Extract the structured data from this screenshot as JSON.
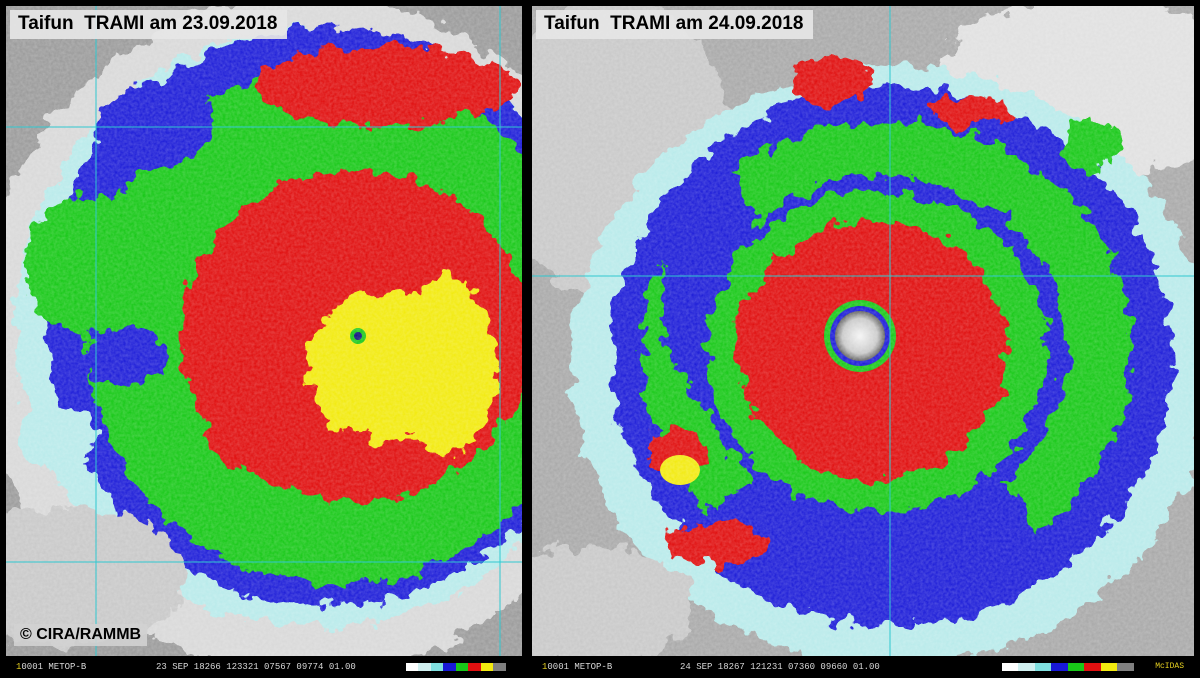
{
  "left_panel": {
    "title": "Taifun  TRAMI am 23.09.2018",
    "credit": "© CIRA/RAMMB",
    "status_frame_num": "1",
    "status_frame_rest": "0001 METOP-B",
    "status_info": "23 SEP 18266 123321 07567 09774 01.00"
  },
  "right_panel": {
    "title": "Taifun  TRAMI am 24.09.2018",
    "status_frame_num": "1",
    "status_frame_rest": "0001 METOP-B",
    "status_info": "24 SEP 18267 121231 07360 09660 01.00",
    "brand": "McIDAS"
  },
  "colors": {
    "red": "#e01010",
    "yellow": "#f2ea10",
    "green": "#18c818",
    "blue": "#1818d8",
    "cyan": "#a0e8e8",
    "gray_cloud": "#b8b8b8",
    "grid": "#30c8d0"
  },
  "colorbar": [
    "#ffffff",
    "#d0f0f0",
    "#80e0e0",
    "#1818d8",
    "#18c818",
    "#e01010",
    "#f2ea10",
    "#808080",
    "#000000"
  ]
}
